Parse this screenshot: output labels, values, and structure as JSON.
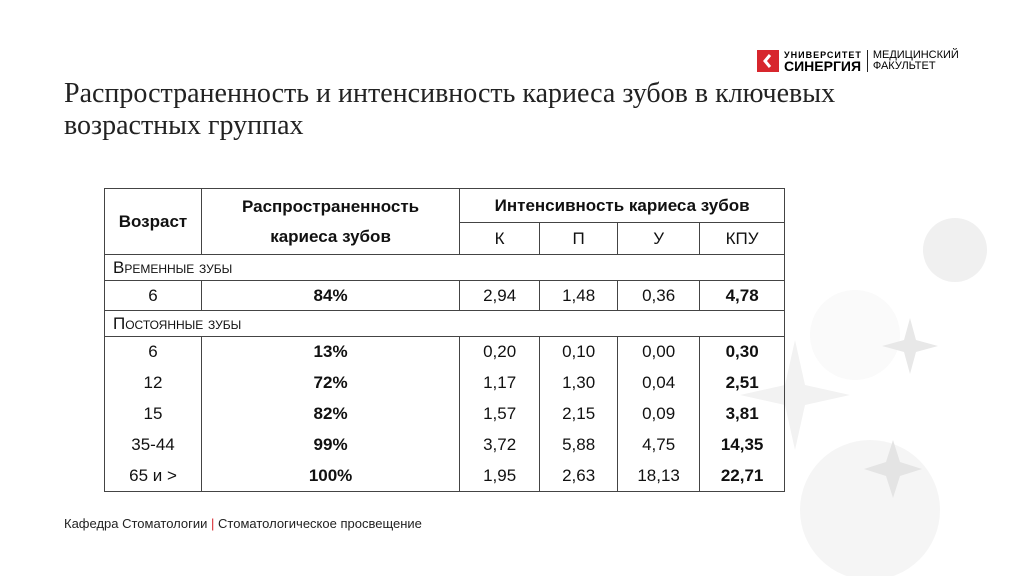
{
  "logo": {
    "line1": "УНИВЕРСИТЕТ",
    "line2": "СИНЕРГИЯ",
    "line3": "МЕДИЦИНСКИЙ",
    "line4": "ФАКУЛЬТЕТ"
  },
  "title": "Распространенность и интенсивность кариеса зубов в ключевых возрастных группах",
  "table": {
    "age_header": "Возраст",
    "prevalence_header": "Распространенность кариеса зубов",
    "intensity_header": "Интенсивность кариеса зубов",
    "subheaders": [
      "К",
      "П",
      "У",
      "КПУ"
    ],
    "groups": [
      {
        "label": "Временные зубы",
        "rows": [
          [
            "6",
            "84%",
            "2,94",
            "1,48",
            "0,36",
            "4,78"
          ]
        ]
      },
      {
        "label": "Постоянные зубы",
        "rows": [
          [
            "6",
            "13%",
            "0,20",
            "0,10",
            "0,00",
            "0,30"
          ],
          [
            "12",
            "72%",
            "1,17",
            "1,30",
            "0,04",
            "2,51"
          ],
          [
            "15",
            "82%",
            "1,57",
            "2,15",
            "0,09",
            "3,81"
          ],
          [
            "35-44",
            "99%",
            "3,72",
            "5,88",
            "4,75",
            "14,35"
          ],
          [
            "65 и >",
            "100%",
            "1,95",
            "2,63",
            "18,13",
            "22,71"
          ]
        ]
      }
    ]
  },
  "footer": {
    "department": "Кафедра Стоматологии",
    "separator": "|",
    "subtitle": "Стоматологическое просвещение"
  }
}
